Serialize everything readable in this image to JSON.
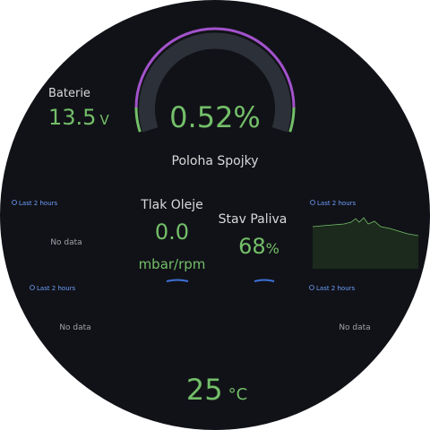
{
  "gauge": {
    "value": "0.52%",
    "label": "Poloha Spojky"
  },
  "battery": {
    "label": "Baterie",
    "value": "13.5",
    "unit": "V"
  },
  "oil": {
    "label": "Tlak Oleje",
    "value": "0.0",
    "unit": "mbar/rpm"
  },
  "fuel": {
    "label": "Stav Paliva",
    "value": "68",
    "unit": "%"
  },
  "panels": [
    {
      "time": "Last 2 hours",
      "message": "No data"
    },
    {
      "time": "Last 2 hours"
    },
    {
      "time": "Last 2 hours",
      "message": "No data"
    },
    {
      "time": "Last 2 hours",
      "message": "No data"
    }
  ],
  "temperature": {
    "value": "25",
    "unit": "°C"
  }
}
